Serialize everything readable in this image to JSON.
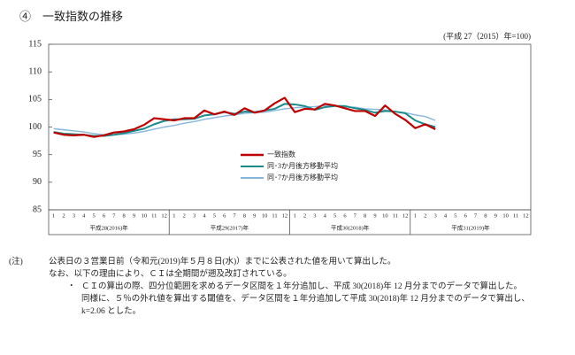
{
  "header": {
    "title": "④　一致指数の推移",
    "unit_note": "(平成 27（2015）年=100)"
  },
  "chart_data": {
    "type": "line",
    "categories": [
      "1",
      "2",
      "3",
      "4",
      "5",
      "6",
      "7",
      "8",
      "9",
      "10",
      "11",
      "12",
      "1",
      "2",
      "3",
      "4",
      "5",
      "6",
      "7",
      "8",
      "9",
      "10",
      "11",
      "12",
      "1",
      "2",
      "3",
      "4",
      "5",
      "6",
      "7",
      "8",
      "9",
      "10",
      "11",
      "12",
      "1",
      "2",
      "3",
      "4",
      "5",
      "6",
      "7",
      "8",
      "9",
      "10",
      "11",
      "12"
    ],
    "year_labels": [
      "平成28(2016)年",
      "平成29(2017)年",
      "平成30(2018)年",
      "平成31(2019)年"
    ],
    "ylim": [
      85,
      115
    ],
    "yticks": [
      85,
      90,
      95,
      100,
      105,
      110,
      115
    ],
    "grid": false,
    "series": [
      {
        "name": "一致指数",
        "color": "#c00000",
        "values": [
          99.0,
          98.6,
          98.5,
          98.6,
          98.2,
          98.5,
          99.0,
          99.2,
          99.6,
          100.4,
          101.6,
          101.4,
          101.2,
          101.6,
          101.6,
          103.0,
          102.3,
          102.8,
          102.2,
          103.4,
          102.6,
          103.0,
          104.3,
          105.3,
          102.7,
          103.3,
          103.2,
          104.2,
          103.9,
          103.4,
          102.9,
          102.9,
          102.0,
          103.9,
          102.4,
          101.3,
          99.8,
          100.5,
          99.6,
          null,
          null,
          null,
          null,
          null,
          null,
          null,
          null,
          null
        ]
      },
      {
        "name": "同･3か月後方移動平均",
        "color": "#1a8a8a",
        "values": [
          99.1,
          98.8,
          98.7,
          98.6,
          98.4,
          98.4,
          98.6,
          98.9,
          99.3,
          99.7,
          100.5,
          101.1,
          101.4,
          101.4,
          101.5,
          102.1,
          102.3,
          102.7,
          102.4,
          102.8,
          102.7,
          103.0,
          103.3,
          104.2,
          104.1,
          103.8,
          103.1,
          103.6,
          103.8,
          103.8,
          103.4,
          103.1,
          102.6,
          102.9,
          102.8,
          102.5,
          101.2,
          100.5,
          100.0,
          null,
          null,
          null,
          null,
          null,
          null,
          null,
          null,
          null
        ]
      },
      {
        "name": "同･7か月後方移動平均",
        "color": "#86b6dc",
        "values": [
          99.7,
          99.5,
          99.3,
          99.1,
          98.8,
          98.6,
          98.6,
          98.7,
          98.9,
          99.2,
          99.6,
          100.0,
          100.3,
          100.7,
          101.0,
          101.4,
          101.7,
          102.0,
          102.2,
          102.5,
          102.6,
          102.7,
          103.0,
          103.3,
          103.5,
          103.6,
          103.7,
          103.9,
          103.8,
          103.6,
          103.6,
          103.3,
          103.2,
          103.1,
          102.8,
          102.6,
          102.2,
          101.9,
          101.2,
          null,
          null,
          null,
          null,
          null,
          null,
          null,
          null,
          null
        ]
      }
    ]
  },
  "notes": {
    "label": "(注)",
    "lines": [
      "公表日の３営業日前（令和元(2019)年５月８日(水)）までに公表された値を用いて算出した。",
      "なお、以下の理由により、ＣＩは全期間が遡及改訂されている。"
    ],
    "bullet": "・",
    "bullet_lines": [
      "ＣＩの算出の際、四分位範囲を求めるデータ区間を１年分追加し、平成 30(2018)年 12 月分までのデータで算出した。",
      "同様に、５％の外れ値を算出する閾値を、データ区間を１年分追加して平成 30(2018)年 12 月分までのデータで算出し、",
      "k=2.06 とした。"
    ]
  }
}
